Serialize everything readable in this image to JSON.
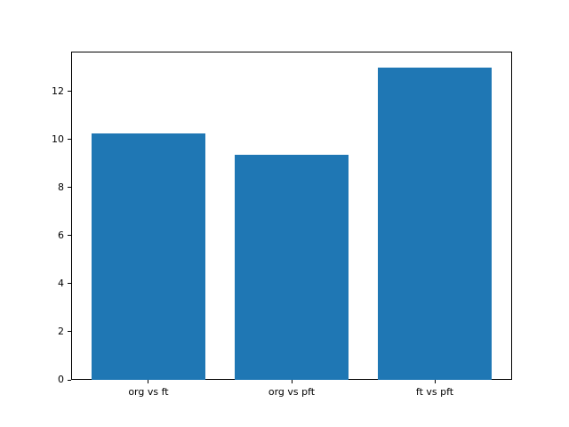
{
  "chart_data": {
    "type": "bar",
    "title": "",
    "xlabel": "",
    "ylabel": "",
    "categories": [
      "org vs ft",
      "org vs pft",
      "ft vs pft"
    ],
    "values": [
      10.25,
      9.37,
      13.0
    ],
    "ylim": [
      0,
      13.65
    ],
    "yticks": [
      0,
      2,
      4,
      6,
      8,
      10,
      12
    ],
    "bar_color": "#1f77b4",
    "bar_width_fraction": 0.8,
    "grid": false,
    "legend": "none"
  },
  "figure": {
    "background": "#ffffff",
    "spine_color": "#000000",
    "tick_color": "#000000",
    "tick_label_color": "#000000"
  }
}
